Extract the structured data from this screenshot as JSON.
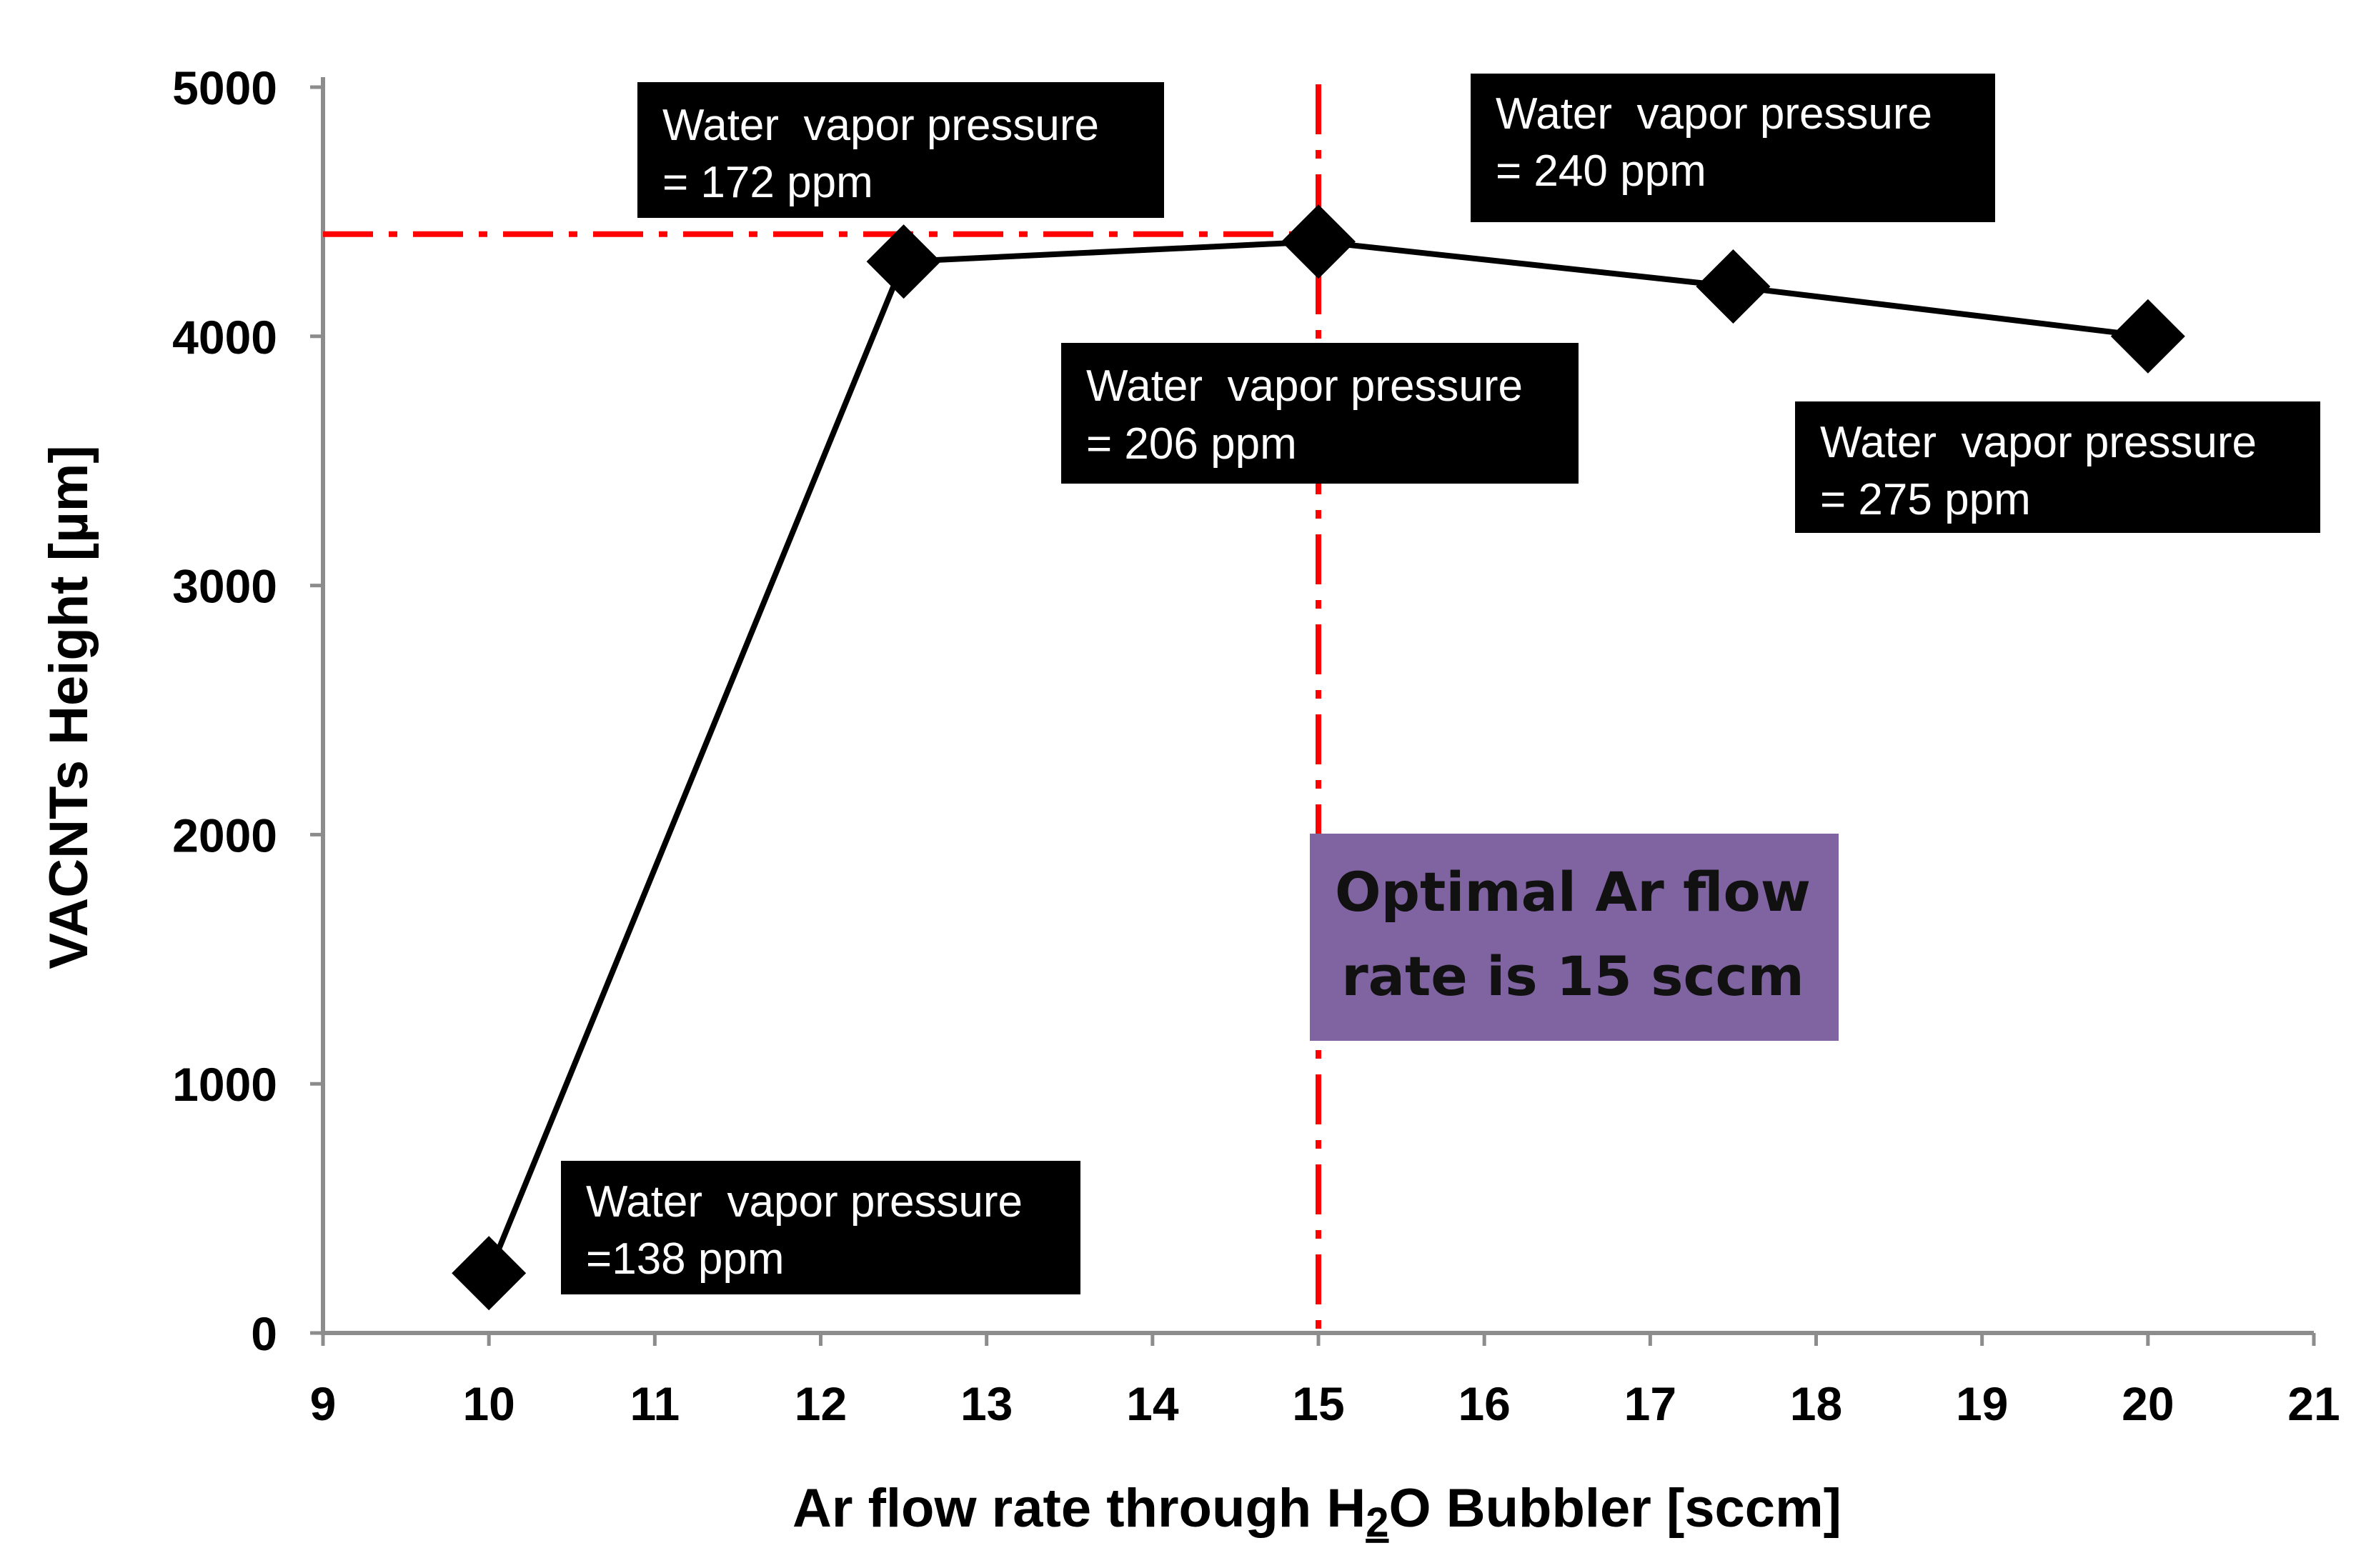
{
  "chart_data": {
    "type": "line",
    "title": "",
    "xlabel": {
      "prefix": "Ar flow rate through H",
      "subscript": "2",
      "suffix": "O Bubbler [sccm]"
    },
    "ylabel": "VACNTs Height [µm]",
    "xlim": [
      9,
      21
    ],
    "ylim": [
      0,
      5000
    ],
    "xticks": [
      "9",
      "10",
      "11",
      "12",
      "13",
      "14",
      "15",
      "16",
      "17",
      "18",
      "19",
      "20",
      "21"
    ],
    "yticks": [
      "0",
      "1000",
      "2000",
      "3000",
      "4000",
      "5000"
    ],
    "grid": false,
    "series": [
      {
        "name": "VACNTs Height",
        "marker": "diamond",
        "color": "#000000",
        "x": [
          10,
          12.5,
          15,
          17.5,
          20
        ],
        "y": [
          240,
          4300,
          4380,
          4200,
          4000
        ]
      }
    ],
    "reference_lines": [
      {
        "orientation": "vertical",
        "x": 15,
        "color": "#ff0000",
        "style": "dash-dot"
      },
      {
        "orientation": "horizontal",
        "y": 4410,
        "x_end": 15,
        "color": "#ff0000",
        "style": "dash-dot"
      }
    ],
    "annotations": [
      {
        "lines": [
          "Water  vapor pressure",
          "=138 ppm"
        ]
      },
      {
        "lines": [
          "Water  vapor pressure",
          "= 172 ppm"
        ]
      },
      {
        "lines": [
          "Water  vapor pressure",
          "= 206 ppm"
        ]
      },
      {
        "lines": [
          "Water  vapor pressure",
          "= 240 ppm"
        ]
      },
      {
        "lines": [
          "Water  vapor pressure",
          "= 275 ppm"
        ]
      }
    ],
    "callout": {
      "lines": [
        "Optimal Ar flow",
        "rate is 15 sccm"
      ],
      "background": "#8064a2"
    }
  }
}
